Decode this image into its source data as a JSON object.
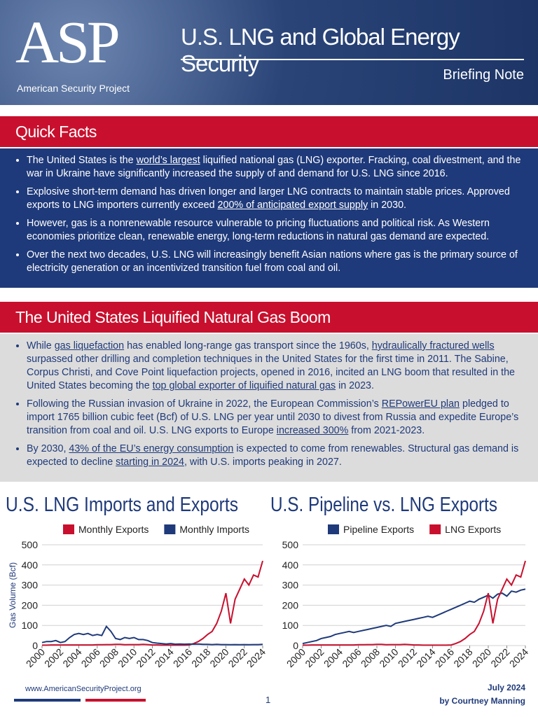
{
  "header": {
    "logo": "ASP",
    "org": "American Security Project",
    "title": "U.S. LNG and Global Energy Security",
    "subtitle": "Briefing Note"
  },
  "sections": [
    {
      "heading": "Quick Facts",
      "bullets": [
        [
          "The United States is the ",
          "world’s largest",
          " liquified national gas (LNG) exporter. Fracking, coal divestment, and the war in Ukraine have significantly increased the supply of and demand for U.S. LNG since 2016."
        ],
        [
          "Explosive short-term demand has driven longer and larger LNG contracts to maintain stable prices. Approved exports to LNG importers currently exceed ",
          "200% of anticipated export supply",
          " in 2030."
        ],
        [
          "However, gas is a nonrenewable resource vulnerable to pricing fluctuations and political risk. As Western economies prioritize clean, renewable energy, long-term reductions in natural gas demand are expected."
        ],
        [
          "Over the next two decades, U.S. LNG will increasingly benefit Asian nations where gas is the primary source of electricity generation or an incentivized transition fuel from coal and oil."
        ]
      ]
    },
    {
      "heading": "The United States Liquified Natural Gas Boom",
      "bullets": [
        [
          "While ",
          "gas liquefaction",
          " has enabled long-range gas transport since the 1960s, ",
          "hydraulically fractured wells",
          " surpassed other drilling and completion techniques in the United States for the first time in 2011. The Sabine, Corpus Christi, and Cove Point liquefaction projects, opened in 2016, incited an LNG boom that resulted in the United States becoming the ",
          "top global exporter of liquified natural gas",
          " in 2023."
        ],
        [
          "Following the Russian invasion of Ukraine in 2022, the European Commission’s ",
          "REPowerEU plan",
          " pledged to import 1765 billion cubic feet (Bcf) of U.S. LNG per year until 2030 to divest from Russia and expedite Europe’s transition from coal and oil. U.S. LNG exports to Europe ",
          "increased 300%",
          " from 2021-2023."
        ],
        [
          "By 2030, ",
          "43% of the EU’s energy consumption",
          " is expected to come from renewables. Structural gas demand is expected to decline ",
          "starting in 2024",
          ", with U.S. imports peaking in 2027."
        ]
      ]
    }
  ],
  "chart_data": [
    {
      "type": "line",
      "title": "U.S. LNG Imports and Exports",
      "y_label": "Gas Volume (Bcf)",
      "x": [
        2000,
        2000.5,
        2001,
        2001.5,
        2002,
        2002.5,
        2003,
        2003.5,
        2004,
        2004.5,
        2005,
        2005.5,
        2006,
        2006.5,
        2007,
        2007.5,
        2008,
        2008.5,
        2009,
        2009.5,
        2010,
        2010.5,
        2011,
        2011.5,
        2012,
        2012.5,
        2013,
        2013.5,
        2014,
        2014.5,
        2015,
        2015.5,
        2016,
        2016.5,
        2017,
        2017.5,
        2018,
        2018.5,
        2019,
        2019.5,
        2020,
        2020.5,
        2021,
        2021.5,
        2022,
        2022.5,
        2023,
        2023.5,
        2024
      ],
      "series": [
        {
          "name": "Monthly Exports",
          "color": "#c8102e",
          "values": [
            2,
            2,
            3,
            3,
            3,
            3,
            3,
            3,
            3,
            3,
            3,
            3,
            4,
            4,
            5,
            5,
            6,
            6,
            4,
            5,
            5,
            5,
            6,
            5,
            3,
            3,
            2,
            2,
            2,
            2,
            2,
            2,
            3,
            10,
            20,
            35,
            55,
            70,
            110,
            170,
            260,
            110,
            230,
            280,
            330,
            300,
            350,
            340,
            420
          ]
        },
        {
          "name": "Monthly Imports",
          "color": "#1f3a7a",
          "values": [
            15,
            20,
            20,
            25,
            15,
            20,
            40,
            55,
            60,
            55,
            60,
            50,
            55,
            50,
            95,
            70,
            35,
            30,
            40,
            35,
            40,
            30,
            30,
            25,
            15,
            12,
            10,
            8,
            10,
            7,
            8,
            7,
            8,
            7,
            8,
            6,
            6,
            5,
            6,
            5,
            5,
            4,
            5,
            4,
            5,
            4,
            5,
            5,
            6
          ]
        }
      ],
      "xlim": [
        2000,
        2024
      ],
      "xticks": [
        2000,
        2002,
        2004,
        2006,
        2008,
        2010,
        2012,
        2014,
        2016,
        2018,
        2020,
        2022,
        2024
      ],
      "ylim": [
        0,
        500
      ],
      "yticks": [
        0,
        100,
        200,
        300,
        400,
        500
      ],
      "grid": true
    },
    {
      "type": "line",
      "title": "U.S. Pipeline vs. LNG Exports",
      "x": [
        2000,
        2000.5,
        2001,
        2001.5,
        2002,
        2002.5,
        2003,
        2003.5,
        2004,
        2004.5,
        2005,
        2005.5,
        2006,
        2006.5,
        2007,
        2007.5,
        2008,
        2008.5,
        2009,
        2009.5,
        2010,
        2010.5,
        2011,
        2011.5,
        2012,
        2012.5,
        2013,
        2013.5,
        2014,
        2014.5,
        2015,
        2015.5,
        2016,
        2016.5,
        2017,
        2017.5,
        2018,
        2018.5,
        2019,
        2019.5,
        2020,
        2020.5,
        2021,
        2021.5,
        2022,
        2022.5,
        2023,
        2023.5,
        2024
      ],
      "series": [
        {
          "name": "Pipeline Exports",
          "color": "#1f3a7a",
          "values": [
            10,
            15,
            20,
            25,
            35,
            40,
            45,
            55,
            60,
            65,
            70,
            65,
            70,
            75,
            80,
            85,
            90,
            95,
            100,
            95,
            110,
            115,
            120,
            125,
            130,
            135,
            140,
            145,
            140,
            150,
            160,
            170,
            180,
            190,
            200,
            210,
            220,
            215,
            230,
            240,
            250,
            235,
            255,
            260,
            245,
            270,
            265,
            275,
            280
          ]
        },
        {
          "name": "LNG Exports",
          "color": "#c8102e",
          "values": [
            2,
            2,
            3,
            3,
            3,
            3,
            3,
            3,
            3,
            3,
            3,
            3,
            4,
            4,
            5,
            5,
            6,
            6,
            4,
            5,
            5,
            5,
            6,
            5,
            3,
            3,
            2,
            2,
            2,
            2,
            2,
            2,
            3,
            10,
            20,
            35,
            55,
            70,
            110,
            170,
            260,
            110,
            230,
            280,
            330,
            300,
            350,
            340,
            420
          ]
        }
      ],
      "xlim": [
        2000,
        2024
      ],
      "xticks": [
        2000,
        2002,
        2004,
        2006,
        2008,
        2010,
        2012,
        2014,
        2016,
        2018,
        2020,
        2022,
        2024
      ],
      "ylim": [
        0,
        500
      ],
      "yticks": [
        0,
        100,
        200,
        300,
        400,
        500
      ],
      "grid": true
    }
  ],
  "footer": {
    "url": "www.AmericanSecurityProject.org",
    "page": "1",
    "date": "July 2024",
    "author": "by Courtney Manning"
  }
}
